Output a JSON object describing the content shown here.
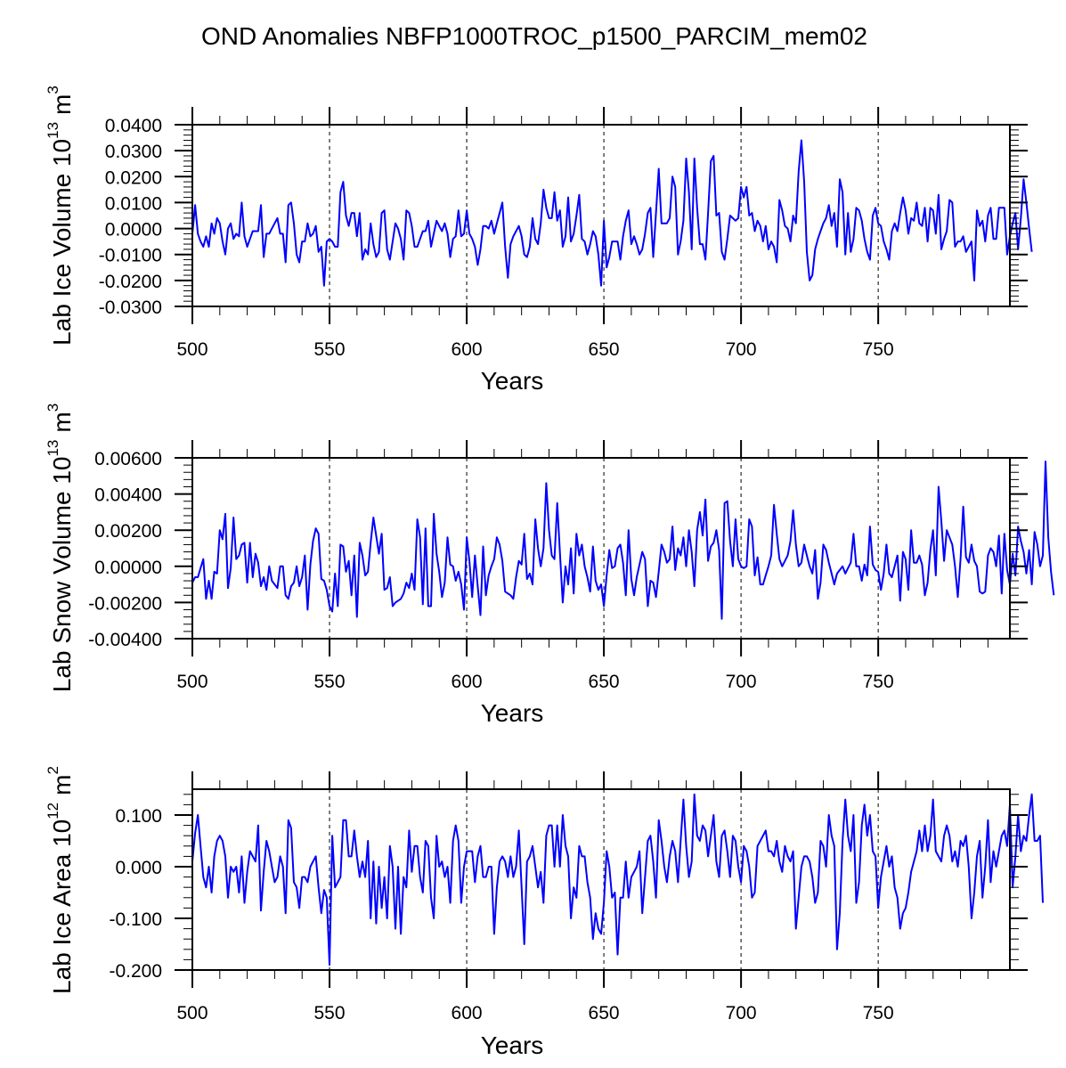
{
  "chart_data": [
    {
      "type": "line",
      "title": "OND Anomalies NBFP1000TROC_p1500_PARCIM_mem02",
      "ylabel": "Lab Ice Volume 10^13 m^3",
      "ylabel_main": "Lab Ice Volume 10",
      "ylabel_exp": "13",
      "ylabel_unit": "m",
      "ylabel_unit_exp": "3",
      "xlabel": "Years",
      "xlim": [
        500,
        798
      ],
      "ylim": [
        -0.03,
        0.04
      ],
      "xticks": [
        500,
        550,
        600,
        650,
        700,
        750
      ],
      "xtick_labels": [
        "500",
        "550",
        "600",
        "650",
        "700",
        "750"
      ],
      "yticks": [
        -0.03,
        -0.02,
        -0.01,
        0.0,
        0.01,
        0.02,
        0.03,
        0.04
      ],
      "ytick_labels": [
        "-0.0300",
        "-0.0200",
        "-0.0100",
        "0.0000",
        "0.0100",
        "0.0200",
        "0.0300",
        "0.0400"
      ],
      "grid": "dashed vertical lines at 550, 600, 650, 700, 750",
      "series_color": "#0000ff",
      "x_start": 500,
      "values": [
        -0.002,
        0.009,
        -0.002,
        -0.005,
        -0.007,
        -0.003,
        -0.007,
        0.002,
        -0.002,
        0.004,
        0.002,
        -0.005,
        -0.01,
        0.0,
        0.002,
        -0.004,
        -0.002,
        -0.003,
        0.01,
        -0.003,
        -0.007,
        -0.004,
        -0.001,
        -0.001,
        -0.001,
        0.009,
        -0.011,
        -0.002,
        -0.002,
        0.0,
        0.002,
        0.004,
        -0.002,
        -0.002,
        -0.013,
        0.009,
        0.01,
        0.002,
        -0.01,
        -0.013,
        -0.005,
        -0.005,
        0.002,
        -0.003,
        -0.002,
        0.001,
        -0.009,
        -0.007,
        -0.022,
        -0.005,
        -0.004,
        -0.005,
        -0.007,
        -0.007,
        0.014,
        0.018,
        0.005,
        0.001,
        0.006,
        0.006,
        -0.003,
        0.006,
        -0.012,
        -0.008,
        -0.01,
        0.002,
        -0.006,
        -0.011,
        -0.009,
        0.006,
        0.007,
        -0.008,
        -0.012,
        -0.005,
        0.002,
        0.0,
        -0.004,
        -0.012,
        0.007,
        0.006,
        0.001,
        -0.007,
        -0.007,
        -0.004,
        -0.001,
        -0.001,
        0.003,
        -0.007,
        -0.002,
        0.003,
        0.001,
        -0.001,
        0.002,
        -0.002,
        -0.011,
        -0.004,
        -0.003,
        0.007,
        -0.003,
        -0.002,
        0.007,
        -0.002,
        -0.004,
        -0.007,
        -0.014,
        -0.008,
        0.001,
        0.001,
        0.0,
        0.003,
        -0.002,
        0.002,
        0.006,
        0.01,
        -0.007,
        -0.019,
        -0.006,
        -0.003,
        -0.001,
        0.001,
        -0.003,
        -0.01,
        -0.011,
        -0.007,
        0.004,
        -0.004,
        -0.006,
        0.002,
        0.015,
        0.008,
        0.004,
        0.004,
        0.014,
        0.003,
        0.007,
        -0.007,
        -0.003,
        0.012,
        -0.005,
        -0.002,
        0.005,
        0.013,
        -0.004,
        -0.005,
        -0.01,
        -0.006,
        -0.001,
        -0.003,
        -0.01,
        -0.022,
        0.003,
        -0.015,
        -0.011,
        -0.005,
        -0.005,
        -0.005,
        -0.012,
        -0.003,
        0.003,
        0.007,
        -0.006,
        -0.003,
        -0.006,
        -0.01,
        -0.008,
        -0.002,
        0.006,
        0.008,
        -0.011,
        0.006,
        0.023,
        0.002,
        0.002,
        0.002,
        0.004,
        0.02,
        0.016,
        -0.01,
        -0.005,
        0.003,
        0.027,
        0.014,
        -0.008,
        0.027,
        0.008,
        -0.006,
        -0.006,
        -0.012,
        0.006,
        0.026,
        0.028,
        0.005,
        0.006,
        -0.009,
        -0.012,
        -0.004,
        0.005,
        0.004,
        0.003,
        0.004,
        0.016,
        0.012,
        0.016,
        0.005,
        0.006,
        -0.001,
        0.003,
        0.001,
        -0.005,
        0.001,
        -0.008,
        -0.005,
        -0.007,
        -0.013,
        0.011,
        0.007,
        0.001,
        0.0,
        -0.005,
        0.005,
        0.002,
        0.022,
        0.034,
        0.018,
        -0.009,
        -0.02,
        -0.018,
        -0.008,
        -0.004,
        -0.001,
        0.002,
        0.004,
        0.009,
        0.001,
        0.006,
        -0.007,
        0.019,
        0.014,
        -0.01,
        0.006,
        -0.009,
        -0.004,
        0.008,
        0.007,
        0.003,
        -0.004,
        -0.009,
        -0.012,
        0.005,
        0.008,
        0.002,
        0.001,
        -0.005,
        -0.008,
        -0.012,
        -0.001,
        0.002,
        -0.001,
        0.006,
        0.012,
        0.007,
        -0.002,
        0.004,
        0.003,
        0.01,
        0.002,
        0.001,
        0.008,
        -0.005,
        0.008,
        0.007,
        -0.002,
        0.013,
        -0.008,
        -0.004,
        -0.001,
        0.011,
        0.01,
        -0.007,
        -0.005,
        -0.005,
        -0.003,
        -0.009,
        -0.007,
        -0.005,
        -0.02,
        0.007,
        0.001,
        0.003,
        -0.005,
        0.005,
        0.008,
        -0.004,
        -0.004,
        0.008,
        0.008,
        0.008,
        -0.01,
        -0.003,
        0.002,
        0.006,
        -0.008,
        0.004,
        0.019,
        0.01,
        0.0,
        -0.009
      ]
    },
    {
      "type": "line",
      "ylabel": "Lab Snow Volume 10^13 m^3",
      "ylabel_main": "Lab Snow Volume 10",
      "ylabel_exp": "13",
      "ylabel_unit": "m",
      "ylabel_unit_exp": "3",
      "xlabel": "Years",
      "xlim": [
        500,
        798
      ],
      "ylim": [
        -0.004,
        0.006
      ],
      "xticks": [
        500,
        550,
        600,
        650,
        700,
        750
      ],
      "xtick_labels": [
        "500",
        "550",
        "600",
        "650",
        "700",
        "750"
      ],
      "yticks": [
        -0.004,
        -0.002,
        0.0,
        0.002,
        0.004,
        0.006
      ],
      "ytick_labels": [
        "-0.00400",
        "-0.00200",
        "0.00000",
        "0.00200",
        "0.00400",
        "0.00600"
      ],
      "grid": "dashed vertical lines at 550, 600, 650, 700, 750",
      "series_color": "#0000ff",
      "x_start": 500,
      "values": [
        -0.0009,
        -0.0006,
        -0.0006,
        -0.0001,
        0.0004,
        -0.0018,
        -0.0008,
        -0.0018,
        -0.0003,
        -0.0004,
        0.002,
        0.0015,
        0.0029,
        -0.0012,
        -0.0001,
        0.0027,
        0.0004,
        0.0006,
        0.0012,
        0.0013,
        -0.0009,
        0.0013,
        -0.0006,
        0.0007,
        0.0002,
        -0.0011,
        -0.0006,
        -0.0013,
        0.0,
        -0.0008,
        -0.001,
        -0.0012,
        0.0,
        0.0,
        -0.0016,
        -0.0018,
        -0.0011,
        -0.0009,
        0.0,
        -0.0011,
        -0.0006,
        0.0006,
        -0.0024,
        0.0001,
        0.0014,
        0.0021,
        0.0018,
        -0.0007,
        -0.0008,
        -0.0013,
        -0.0022,
        -0.0025,
        -0.0004,
        -0.0022,
        0.0012,
        0.0011,
        -0.0003,
        0.0003,
        -0.0016,
        0.0006,
        -0.0028,
        0.0013,
        0.0006,
        -0.0005,
        -0.0003,
        0.0013,
        0.0027,
        0.0017,
        0.0007,
        0.0018,
        -0.0013,
        -0.0012,
        -0.0006,
        -0.0022,
        -0.002,
        -0.0019,
        -0.0018,
        -0.0015,
        -0.0009,
        -0.0012,
        -0.0004,
        -0.0013,
        0.0026,
        0.0016,
        -0.0021,
        0.0021,
        -0.0022,
        -0.0022,
        0.0029,
        0.0007,
        -0.0003,
        -0.0017,
        -0.0009,
        0.0016,
        0.0001,
        0.0,
        -0.0008,
        -0.0003,
        -0.001,
        -0.0024,
        0.0016,
        0.0003,
        -0.0017,
        0.0006,
        -0.0011,
        -0.0027,
        0.0011,
        -0.0016,
        -0.0005,
        0.0,
        0.0004,
        0.0016,
        0.0012,
        0.0003,
        -0.0014,
        -0.0015,
        -0.0016,
        -0.0018,
        -0.0006,
        0.0003,
        0.0001,
        0.0018,
        -0.0007,
        -0.0004,
        -0.001,
        0.0026,
        0.001,
        0.0,
        0.001,
        0.0046,
        0.002,
        0.0006,
        0.0004,
        0.0035,
        0.0007,
        -0.002,
        0.0,
        -0.001,
        0.001,
        -0.0015,
        0.0018,
        0.0006,
        0.0012,
        0.0,
        -0.0006,
        -0.0014,
        0.0011,
        -0.0008,
        -0.0013,
        -0.001,
        -0.0022,
        -0.0005,
        0.0009,
        -0.0001,
        0.0,
        0.001,
        0.0012,
        0.0002,
        -0.0016,
        0.002,
        -0.0007,
        -0.0016,
        -0.0006,
        0.0001,
        0.0008,
        0.0004,
        -0.0022,
        -0.0008,
        -0.0009,
        -0.0017,
        -0.0003,
        0.0012,
        0.0008,
        0.0002,
        0.0004,
        0.0022,
        -0.0002,
        0.001,
        0.0006,
        0.0016,
        0.0,
        0.002,
        0.0008,
        -0.0011,
        0.002,
        0.003,
        0.0017,
        0.0037,
        0.0003,
        0.0011,
        0.0013,
        0.002,
        0.0009,
        -0.0029,
        0.0035,
        0.0036,
        0.0014,
        0.0,
        0.0026,
        0.0004,
        0.0,
        -0.0001,
        0.0,
        0.0026,
        0.0022,
        -0.0005,
        0.0005,
        -0.001,
        -0.001,
        -0.0005,
        0.0,
        0.0006,
        0.0034,
        0.0018,
        0.0004,
        0.0,
        0.0003,
        0.0006,
        0.0014,
        0.0031,
        0.0012,
        0.0,
        0.0002,
        0.0012,
        0.0006,
        0.0,
        -0.0004,
        0.0009,
        -0.0018,
        -0.0009,
        0.0012,
        0.0009,
        0.0002,
        -0.0004,
        -0.001,
        -0.0004,
        -0.0002,
        0.0,
        -0.0004,
        -0.0001,
        0.0002,
        0.0018,
        0.0,
        0.0,
        -0.0008,
        0.0001,
        -0.0005,
        0.0022,
        0.0001,
        -0.0002,
        -0.0003,
        -0.0013,
        -0.0004,
        0.0012,
        -0.0004,
        -0.0006,
        0.0,
        0.0006,
        -0.0019,
        0.0008,
        0.0004,
        -0.0013,
        0.002,
        0.0002,
        0.0002,
        0.0006,
        0.0001,
        -0.0016,
        -0.0009,
        0.0009,
        0.002,
        -0.0005,
        0.0044,
        0.0025,
        0.0003,
        0.002,
        0.0016,
        0.0012,
        0.0,
        -0.0017,
        0.0004,
        0.0033,
        0.0005,
        0.0002,
        0.0012,
        0.0003,
        0.0,
        -0.0014,
        -0.0015,
        -0.0014,
        0.0006,
        0.001,
        0.0008,
        0.0,
        0.0017,
        -0.0015,
        0.0018,
        -0.0002,
        -0.001,
        0.0007,
        -0.0005,
        0.0022,
        0.0014,
        0.0008,
        -0.0004,
        0.0009,
        -0.001,
        0.0019,
        0.0012,
        0.0,
        0.0006,
        0.0058,
        0.0016,
        -0.0003,
        -0.0016
      ]
    },
    {
      "type": "line",
      "ylabel": "Lab Ice Area 10^12 m^2",
      "ylabel_main": "Lab Ice Area 10",
      "ylabel_exp": "12",
      "ylabel_unit": "m",
      "ylabel_unit_exp": "2",
      "xlabel": "Years",
      "xlim": [
        500,
        798
      ],
      "ylim": [
        -0.2,
        0.15
      ],
      "xticks": [
        500,
        550,
        600,
        650,
        700,
        750
      ],
      "xtick_labels": [
        "500",
        "550",
        "600",
        "650",
        "700",
        "750"
      ],
      "yticks": [
        -0.2,
        -0.1,
        0.0,
        0.1
      ],
      "ytick_labels": [
        "-0.200",
        "-0.100",
        "0.000",
        "0.100"
      ],
      "grid": "dashed vertical lines at 550, 600, 650, 700, 750",
      "series_color": "#0000ff",
      "x_start": 500,
      "values": [
        0.01,
        0.065,
        0.1,
        0.04,
        -0.02,
        -0.04,
        0.0,
        -0.05,
        0.02,
        0.05,
        0.06,
        0.05,
        0.02,
        -0.06,
        0.0,
        -0.01,
        0.0,
        -0.05,
        0.02,
        -0.07,
        -0.01,
        0.03,
        0.02,
        0.01,
        0.08,
        -0.085,
        -0.01,
        0.05,
        0.03,
        0.0,
        -0.03,
        -0.02,
        0.02,
        0.0,
        -0.09,
        0.09,
        0.075,
        -0.03,
        -0.04,
        -0.08,
        -0.02,
        -0.02,
        -0.03,
        0.0,
        0.01,
        0.02,
        -0.04,
        -0.09,
        -0.045,
        -0.06,
        -0.19,
        0.06,
        -0.04,
        -0.03,
        -0.02,
        0.09,
        0.09,
        0.02,
        0.02,
        0.07,
        0.02,
        -0.02,
        0.01,
        -0.02,
        0.05,
        -0.1,
        0.01,
        -0.11,
        0.0,
        -0.08,
        -0.02,
        -0.1,
        0.04,
        0.0,
        -0.12,
        0.0,
        -0.13,
        -0.02,
        -0.04,
        0.07,
        -0.01,
        0.04,
        0.04,
        -0.02,
        -0.05,
        0.05,
        0.04,
        -0.06,
        -0.1,
        0.06,
        0.0,
        0.01,
        -0.02,
        0.0,
        -0.07,
        0.05,
        0.08,
        0.05,
        -0.07,
        0.0,
        0.03,
        0.03,
        0.03,
        -0.03,
        0.02,
        0.04,
        -0.02,
        -0.02,
        0.0,
        0.0,
        -0.13,
        -0.04,
        0.01,
        0.02,
        0.01,
        -0.02,
        0.02,
        -0.02,
        0.0,
        0.07,
        -0.04,
        -0.15,
        0.01,
        0.02,
        0.04,
        0.0,
        -0.04,
        -0.01,
        -0.07,
        0.06,
        0.08,
        0.08,
        0.0,
        0.08,
        0.0,
        0.1,
        0.04,
        0.02,
        -0.1,
        -0.04,
        -0.06,
        0.04,
        0.02,
        0.02,
        -0.03,
        -0.06,
        -0.14,
        -0.09,
        -0.12,
        -0.13,
        -0.07,
        0.03,
        0.0,
        -0.06,
        -0.05,
        -0.17,
        -0.06,
        -0.06,
        0.01,
        -0.06,
        -0.02,
        -0.01,
        0.0,
        0.03,
        -0.09,
        -0.02,
        0.05,
        0.06,
        0.01,
        -0.06,
        0.09,
        0.05,
        0.0,
        -0.03,
        0.02,
        0.05,
        0.03,
        -0.03,
        0.05,
        0.13,
        0.04,
        -0.02,
        0.01,
        0.14,
        0.06,
        0.05,
        0.08,
        0.07,
        0.02,
        0.06,
        0.1,
        0.01,
        -0.02,
        0.06,
        0.07,
        0.03,
        -0.02,
        0.06,
        0.05,
        0.0,
        -0.03,
        0.04,
        0.03,
        0.0,
        -0.06,
        -0.05,
        0.04,
        0.05,
        0.06,
        0.07,
        0.03,
        0.03,
        0.02,
        0.05,
        0.01,
        -0.01,
        0.04,
        0.02,
        0.01,
        0.03,
        -0.12,
        -0.06,
        0.0,
        0.02,
        0.02,
        0.01,
        -0.02,
        -0.07,
        -0.05,
        0.05,
        0.04,
        0.0,
        0.1,
        0.06,
        0.04,
        -0.16,
        -0.09,
        0.05,
        0.13,
        0.06,
        0.03,
        0.1,
        -0.07,
        -0.03,
        0.08,
        0.12,
        0.06,
        0.1,
        0.03,
        0.02,
        -0.08,
        -0.02,
        0.01,
        0.04,
        0.0,
        0.02,
        -0.04,
        -0.06,
        -0.12,
        -0.09,
        -0.08,
        -0.05,
        -0.01,
        0.01,
        0.03,
        0.07,
        0.03,
        0.08,
        0.03,
        0.06,
        0.13,
        0.03,
        0.02,
        0.01,
        0.06,
        0.08,
        0.06,
        0.01,
        0.03,
        0.0,
        0.05,
        0.04,
        0.06,
        0.0,
        -0.1,
        -0.05,
        0.02,
        0.05,
        -0.06,
        0.0,
        0.09,
        -0.03,
        0.03,
        0.0,
        0.03,
        0.06,
        0.07,
        0.04,
        0.12,
        -0.04,
        0.02,
        0.1,
        0.03,
        0.06,
        0.05,
        0.1,
        0.14,
        0.05,
        0.05,
        0.06,
        -0.07
      ]
    }
  ]
}
